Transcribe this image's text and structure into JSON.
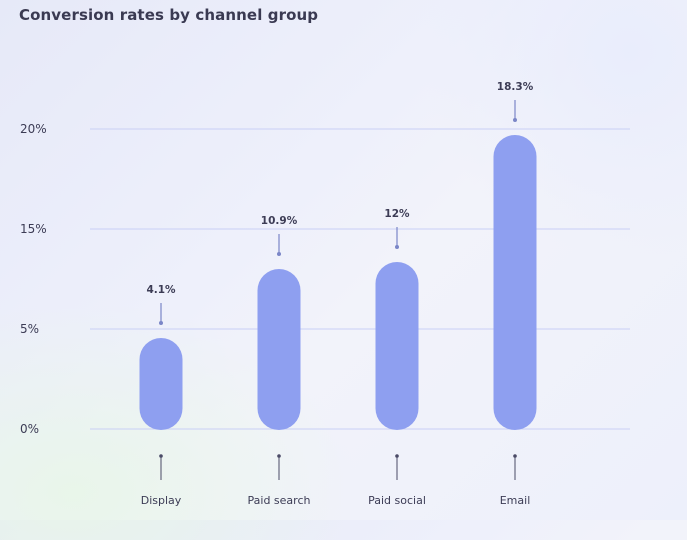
{
  "chart_data": {
    "type": "bar",
    "title": "Conversion rates by channel group",
    "categories": [
      "Display",
      "Paid search",
      "Paid social",
      "Email"
    ],
    "values": [
      4.1,
      10.9,
      12,
      18.3
    ],
    "value_labels": [
      "4.1%",
      "10.9%",
      "12%",
      "18.3%"
    ],
    "y_ticks": [
      {
        "value": 0,
        "label": "0%"
      },
      {
        "value": 5,
        "label": "5%"
      },
      {
        "value": 15,
        "label": "15%"
      },
      {
        "value": 20,
        "label": "20%"
      }
    ],
    "ylim": [
      0,
      20
    ],
    "grid": true,
    "legend": "none",
    "bar_color": "#8e9ff0",
    "grid_color": "#c9cff5",
    "text_color": "#3c3c55"
  }
}
